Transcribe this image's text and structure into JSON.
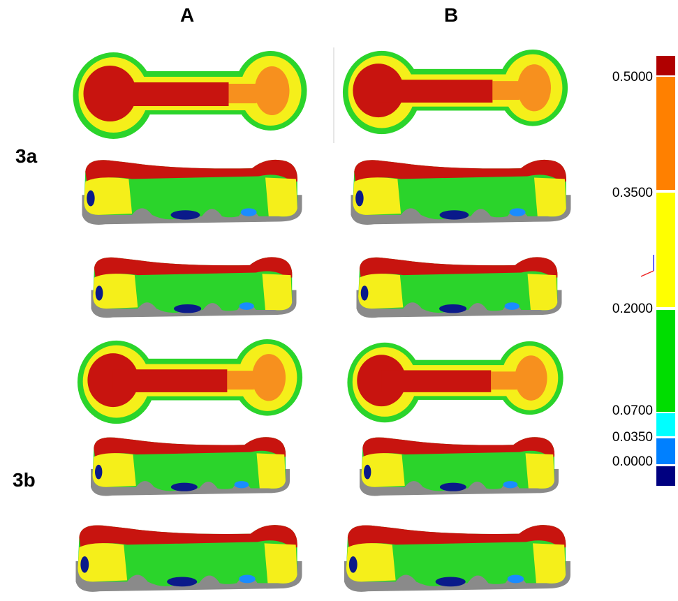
{
  "columns": [
    "A",
    "B"
  ],
  "rows": [
    "3a",
    "3b"
  ],
  "scale": {
    "labels": [
      "0.5000",
      "0.3500",
      "0.2000",
      "0.0700",
      "0.0350",
      "0.0000"
    ]
  }
}
